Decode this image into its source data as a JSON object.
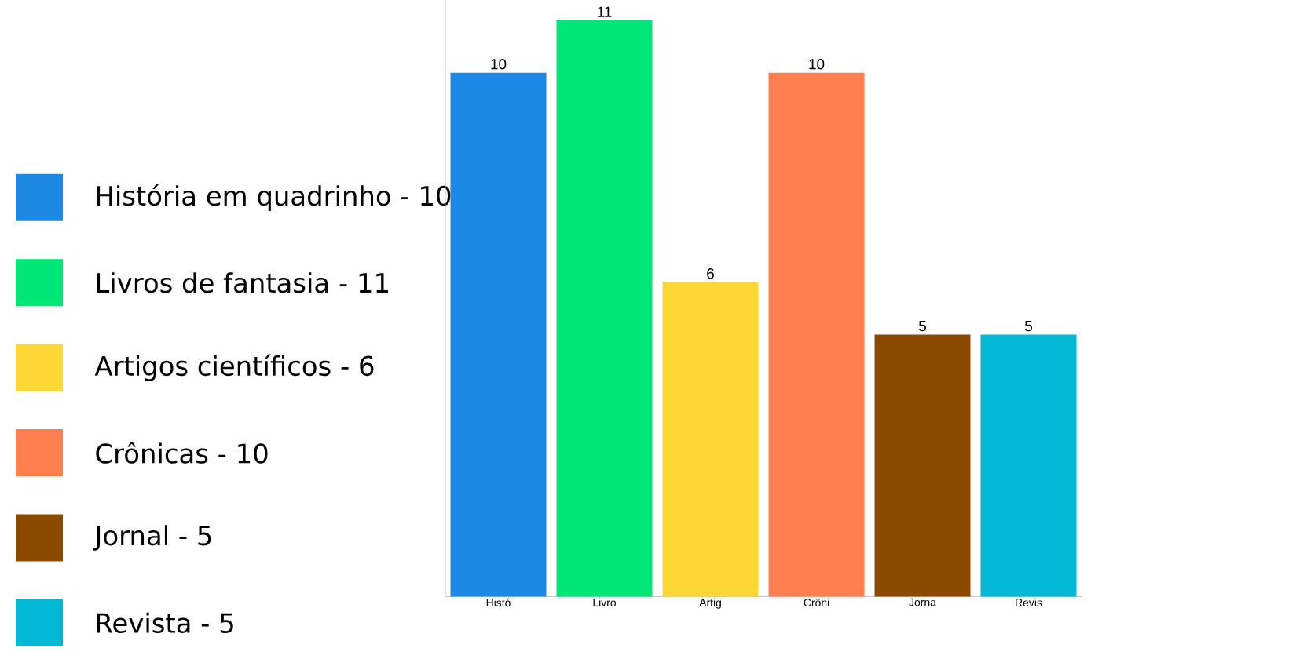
{
  "chart_data": {
    "type": "bar",
    "categories": [
      "Histó",
      "Livro",
      "Artig",
      "Crôni",
      "Jorna",
      "Revis"
    ],
    "series": [
      {
        "name": "História em quadrinho - 10",
        "color": "#1e88e5",
        "values": [
          10,
          null,
          null,
          null,
          null,
          null
        ]
      },
      {
        "name": "Livros de fantasia - 11",
        "color": "#00e676",
        "values": [
          null,
          11,
          null,
          null,
          null,
          null
        ]
      },
      {
        "name": "Artigos científicos - 6",
        "color": "#fdd835",
        "values": [
          null,
          null,
          6,
          null,
          null,
          null
        ]
      },
      {
        "name": "Crônicas - 10",
        "color": "#ff7f50",
        "values": [
          null,
          null,
          null,
          10,
          null,
          null
        ]
      },
      {
        "name": "Jornal - 5",
        "color": "#8b4a00",
        "values": [
          null,
          null,
          null,
          null,
          5,
          null
        ]
      },
      {
        "name": "Revista - 5",
        "color": "#00b8d4",
        "values": [
          null,
          null,
          null,
          null,
          null,
          5
        ]
      }
    ],
    "data_labels": true,
    "legend": "left"
  }
}
